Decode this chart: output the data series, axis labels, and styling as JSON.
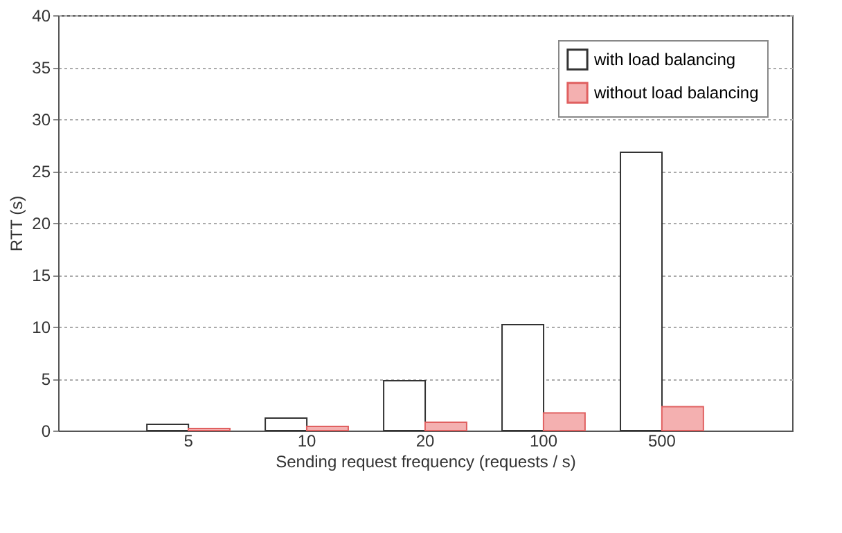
{
  "chart_data": {
    "type": "bar",
    "xlabel": "Sending request frequency (requests / s)",
    "ylabel": "RTT (s)",
    "categories": [
      "5",
      "10",
      "20",
      "100",
      "500"
    ],
    "series": [
      {
        "name": "with load balancing",
        "color": "#ffffff",
        "values": [
          0.6,
          1.2,
          4.8,
          10.2,
          26.8
        ]
      },
      {
        "name": "without load balancing",
        "color": "#f4b0b0",
        "values": [
          0.2,
          0.4,
          0.8,
          1.7,
          2.3
        ]
      }
    ],
    "ylim": [
      0,
      40
    ],
    "yticks": [
      0,
      5,
      10,
      15,
      20,
      25,
      30,
      35,
      40
    ],
    "grid": "y",
    "legend": "top right"
  }
}
